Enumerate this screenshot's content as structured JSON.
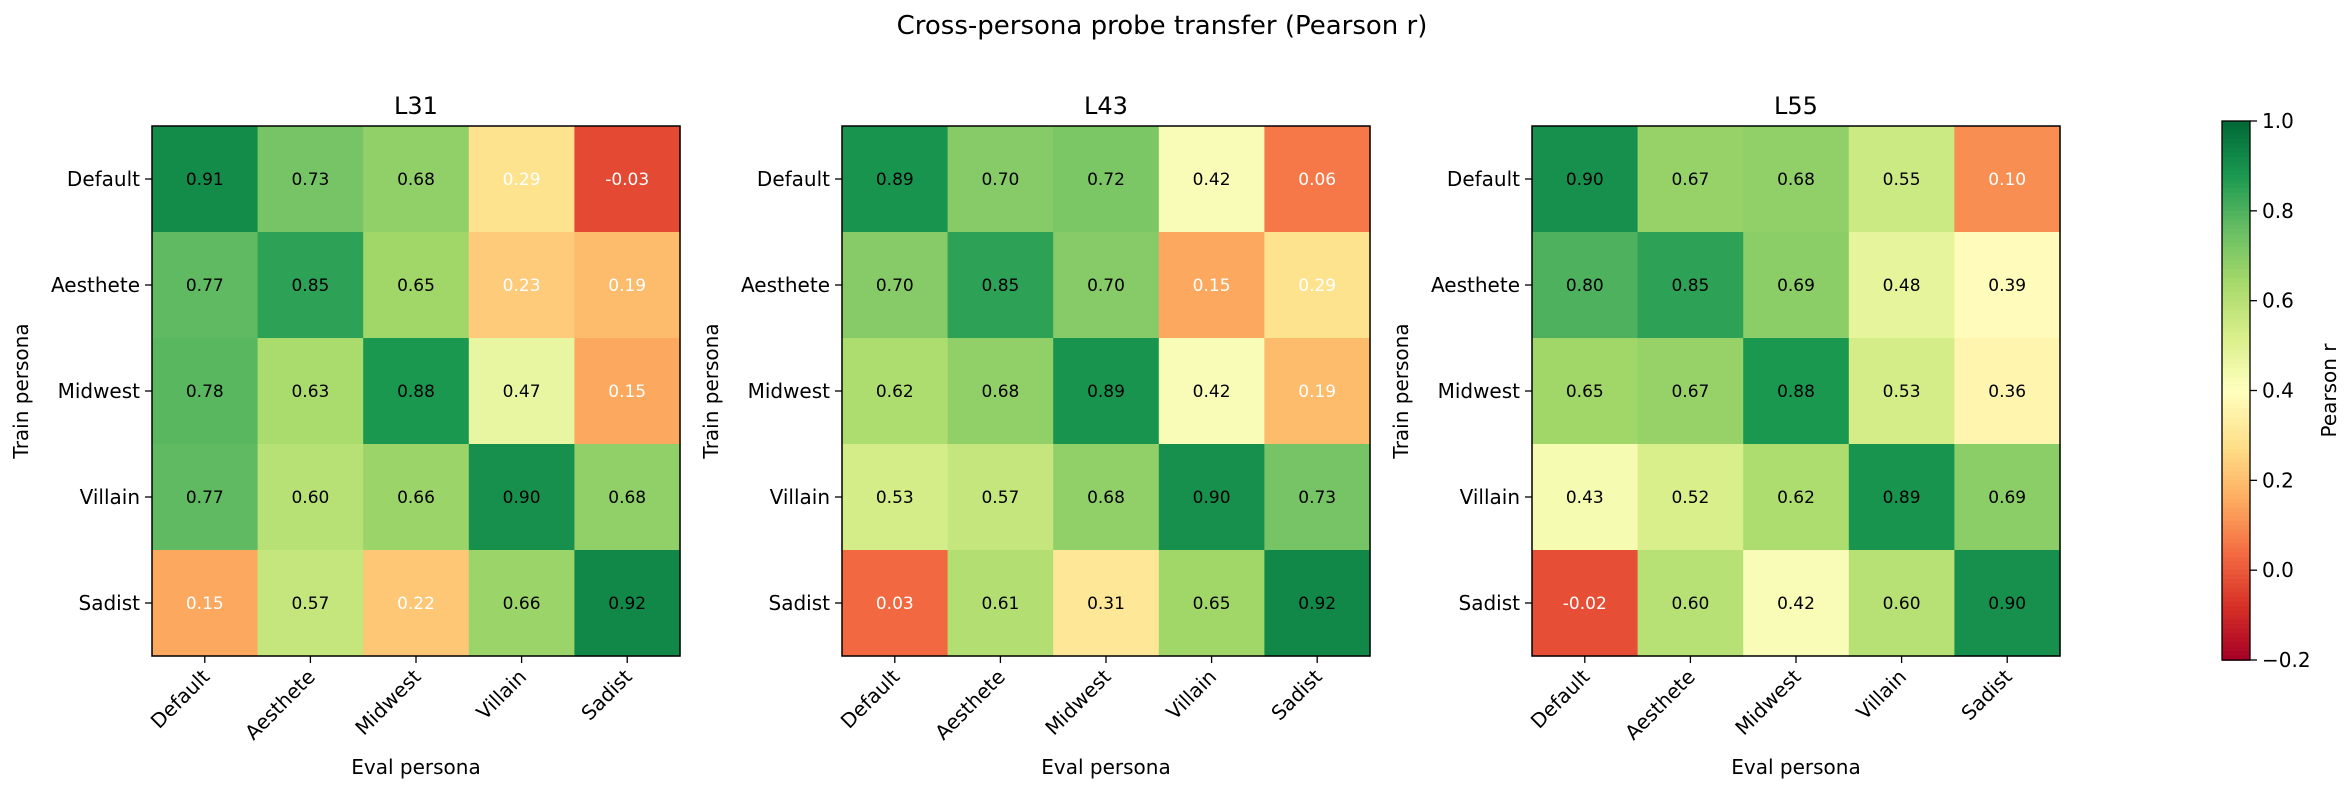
{
  "figure": {
    "title": "Cross-persona probe transfer (Pearson r)"
  },
  "chart_data": {
    "type": "heatmap",
    "colormap": "RdYlGn",
    "vmin": -0.2,
    "vmax": 1.0,
    "xlabel": "Eval persona",
    "ylabel": "Train persona",
    "x_categories": [
      "Default",
      "Aesthete",
      "Midwest",
      "Villain",
      "Sadist"
    ],
    "y_categories": [
      "Default",
      "Aesthete",
      "Midwest",
      "Villain",
      "Sadist"
    ],
    "panels": [
      {
        "title": "L31",
        "values": [
          [
            0.91,
            0.73,
            0.68,
            0.29,
            -0.03
          ],
          [
            0.77,
            0.85,
            0.65,
            0.23,
            0.19
          ],
          [
            0.78,
            0.63,
            0.88,
            0.47,
            0.15
          ],
          [
            0.77,
            0.6,
            0.66,
            0.9,
            0.68
          ],
          [
            0.15,
            0.57,
            0.22,
            0.66,
            0.92
          ]
        ]
      },
      {
        "title": "L43",
        "values": [
          [
            0.89,
            0.7,
            0.72,
            0.42,
            0.06
          ],
          [
            0.7,
            0.85,
            0.7,
            0.15,
            0.29
          ],
          [
            0.62,
            0.68,
            0.89,
            0.42,
            0.19
          ],
          [
            0.53,
            0.57,
            0.68,
            0.9,
            0.73
          ],
          [
            0.03,
            0.61,
            0.31,
            0.65,
            0.92
          ]
        ]
      },
      {
        "title": "L55",
        "values": [
          [
            0.9,
            0.67,
            0.68,
            0.55,
            0.1
          ],
          [
            0.8,
            0.85,
            0.69,
            0.48,
            0.39
          ],
          [
            0.65,
            0.67,
            0.88,
            0.53,
            0.36
          ],
          [
            0.43,
            0.52,
            0.62,
            0.89,
            0.69
          ],
          [
            -0.02,
            0.6,
            0.42,
            0.6,
            0.9
          ]
        ]
      }
    ],
    "colorbar": {
      "label": "Pearson r",
      "ticks": [
        "1.0",
        "0.8",
        "0.6",
        "0.4",
        "0.2",
        "0.0",
        "−0.2"
      ]
    }
  }
}
